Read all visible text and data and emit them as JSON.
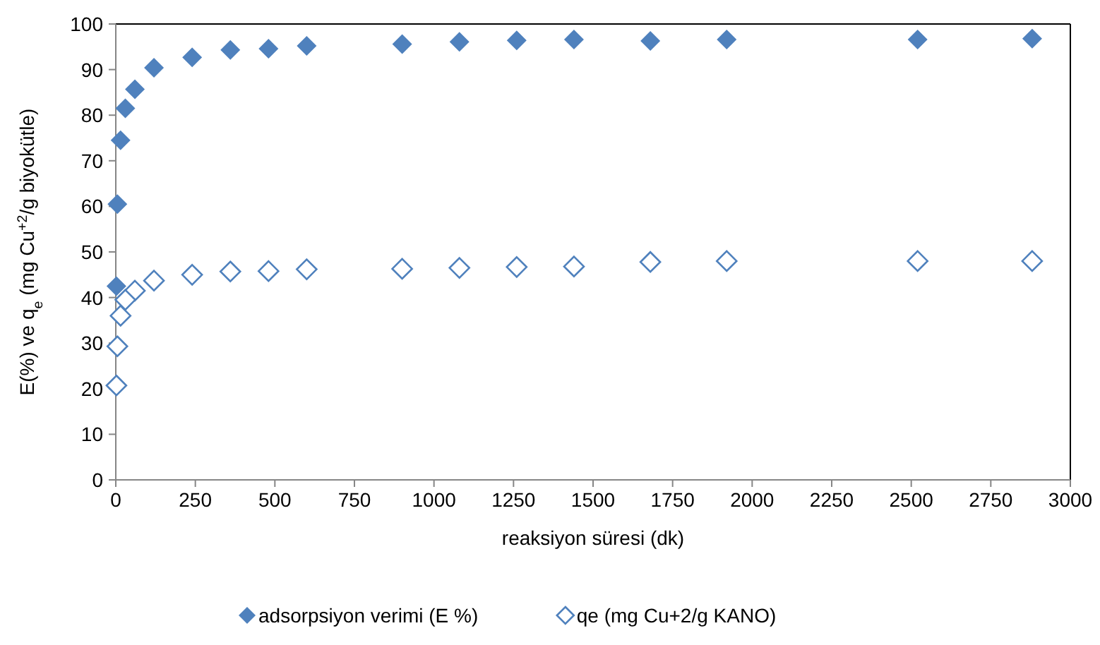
{
  "chart_data": {
    "type": "scatter",
    "xlabel": "reaksiyon süresi (dk)",
    "ylabel": "E(%) ve q$_{e}$ (mg Cu$^{+2}$/g biyokütle)",
    "x": [
      2,
      5,
      15,
      30,
      60,
      120,
      240,
      360,
      480,
      600,
      900,
      1080,
      1260,
      1440,
      1680,
      1920,
      2520,
      2880
    ],
    "series": [
      {
        "name": "adsorpsiyon verimi (E %)",
        "color": "#4f81bd",
        "marker": "diamond",
        "values": [
          42.5,
          60.5,
          74.5,
          81.5,
          85.7,
          90.4,
          92.7,
          94.3,
          94.6,
          95.2,
          95.6,
          96.1,
          96.4,
          96.6,
          96.3,
          96.6,
          96.6,
          96.8
        ]
      },
      {
        "name": "qe (mg Cu+2/g KANO)",
        "color": "#4f81bd",
        "marker": "diamond",
        "values": [
          20.7,
          29.3,
          36,
          39.5,
          41.5,
          43.7,
          45,
          45.7,
          45.8,
          46.2,
          46.3,
          46.5,
          46.7,
          46.8,
          47.8,
          48,
          48,
          48
        ]
      }
    ],
    "xlim": [
      0,
      3000
    ],
    "xticks": [
      0,
      250,
      500,
      750,
      1000,
      1250,
      1500,
      1750,
      2000,
      2250,
      2500,
      2750,
      3000
    ],
    "ylim": [
      0,
      100
    ],
    "yticks": [
      0,
      10,
      20,
      30,
      40,
      50,
      60,
      70,
      80,
      90,
      100
    ],
    "grid": false,
    "legend": "bottom"
  }
}
